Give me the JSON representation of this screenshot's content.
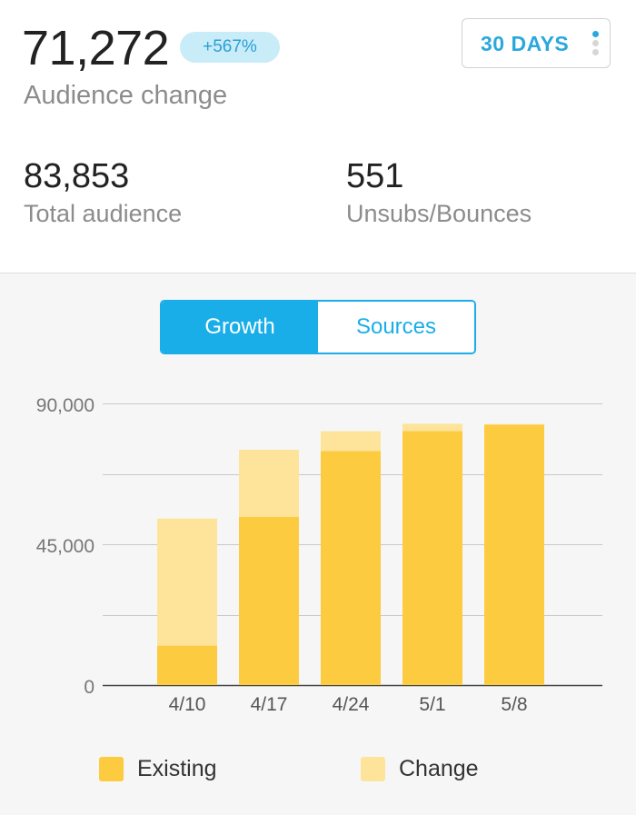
{
  "header": {
    "audience_change_value": "71,272",
    "audience_change_badge": "+567%",
    "audience_change_label": "Audience change",
    "range_button_label": "30 DAYS",
    "menu_icon": "kebab-menu-icon"
  },
  "stats": {
    "total_audience_value": "83,853",
    "total_audience_label": "Total audience",
    "unsubs_value": "551",
    "unsubs_label": "Unsubs/Bounces"
  },
  "tabs": {
    "growth_label": "Growth",
    "sources_label": "Sources",
    "active": "Growth"
  },
  "legend": {
    "existing_label": "Existing",
    "change_label": "Change"
  },
  "colors": {
    "accent": "#1aaee8",
    "badge_bg": "#c8ecf8",
    "badge_text": "#2a9fd6",
    "existing": "#fdcb40",
    "change": "#fde49a",
    "menu_dot_active": "#2aa8dc",
    "menu_dot_inactive": "#d6d6d6"
  },
  "chart_data": {
    "type": "bar",
    "stacked": true,
    "categories": [
      "4/10",
      "4/17",
      "4/24",
      "5/1",
      "5/8"
    ],
    "series": [
      {
        "name": "Existing",
        "values": [
          12600,
          53800,
          74800,
          81200,
          83200
        ]
      },
      {
        "name": "Change",
        "values": [
          40600,
          21400,
          6300,
          2300,
          200
        ]
      }
    ],
    "ylim": [
      0,
      90000
    ],
    "yticks": [
      0,
      45000,
      90000
    ],
    "ytick_labels": [
      "0",
      "45,000",
      "90,000"
    ],
    "gridlines": [
      0,
      22500,
      45000,
      67500,
      90000
    ],
    "grid": true,
    "legend_position": "bottom",
    "title": "",
    "xlabel": "",
    "ylabel": ""
  }
}
